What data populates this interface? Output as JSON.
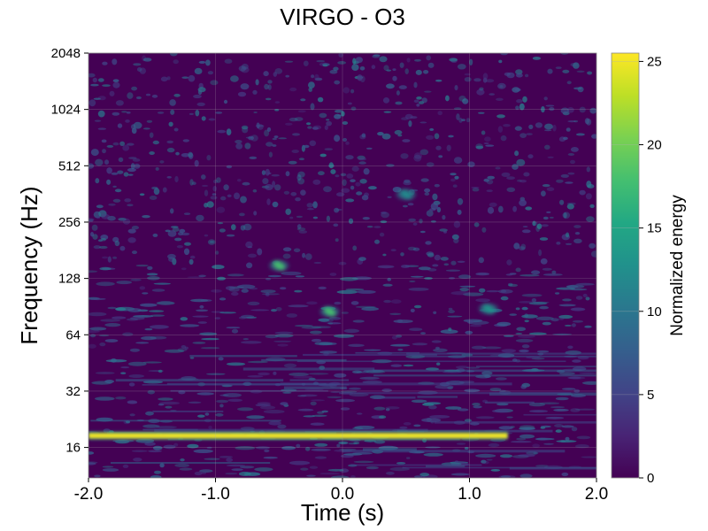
{
  "chart_data": {
    "type": "heatmap",
    "title": "VIRGO - O3",
    "xlabel": "Time (s)",
    "ylabel": "Frequency (Hz)",
    "xlim": [
      -2.0,
      2.0
    ],
    "ylim": [
      11,
      2048
    ],
    "yscale": "log2",
    "xticks": [
      -2.0,
      -1.0,
      0.0,
      1.0,
      2.0
    ],
    "xtick_labels": [
      "-2.0",
      "-1.0",
      "0.0",
      "1.0",
      "2.0"
    ],
    "yticks": [
      16,
      32,
      64,
      128,
      256,
      512,
      1024,
      2048
    ],
    "ytick_labels": [
      "16",
      "32",
      "64",
      "128",
      "256",
      "512",
      "1024",
      "2048"
    ],
    "colorbar": {
      "label": "Normalized energy",
      "range": [
        0,
        25.5
      ],
      "ticks": [
        0,
        5,
        10,
        15,
        20,
        25
      ],
      "tick_labels": [
        "0",
        "5",
        "10",
        "15",
        "20",
        "25"
      ],
      "colormap": "viridis"
    },
    "features": [
      {
        "t_start": -2.0,
        "t_end": 1.3,
        "frequency": 18.5,
        "energy": 25,
        "note": "narrow horizontal line"
      },
      {
        "t": -0.5,
        "frequency": 150,
        "energy": 18
      },
      {
        "t": -0.1,
        "frequency": 85,
        "energy": 18
      },
      {
        "t": 0.5,
        "frequency": 360,
        "energy": 12
      },
      {
        "t": 1.15,
        "frequency": 88,
        "energy": 13
      }
    ]
  },
  "colors": {
    "background": "#440154",
    "accent": "#fde725",
    "grid": "#b0b0b0"
  }
}
